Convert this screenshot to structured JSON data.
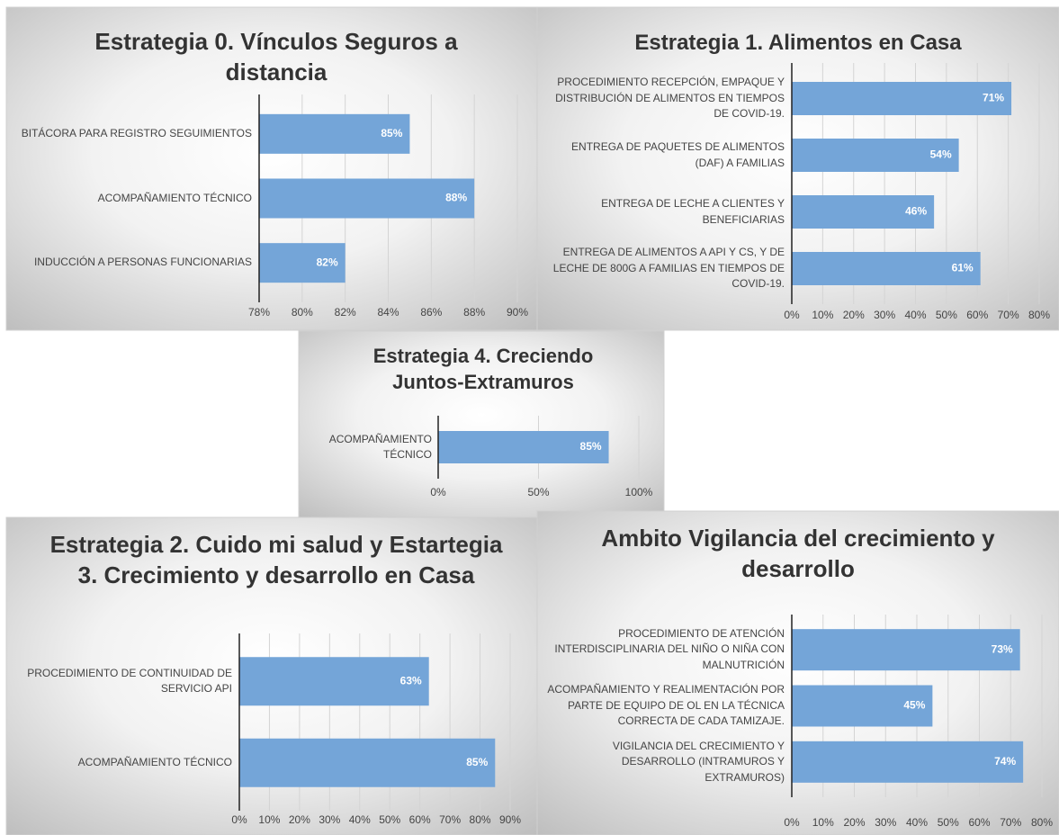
{
  "chart_data": [
    {
      "type": "bar",
      "orientation": "horizontal",
      "title": "Estrategia 0. Vínculos Seguros a distancia",
      "categories": [
        "BITÁCORA PARA REGISTRO SEGUIMIENTOS",
        "ACOMPAÑAMIENTO TÉCNICO",
        "INDUCCIÓN A PERSONAS FUNCIONARIAS"
      ],
      "values": [
        85,
        88,
        82
      ],
      "value_labels": [
        "85%",
        "88%",
        "82%"
      ],
      "color": "#74a5d8",
      "xlim": [
        78,
        90
      ],
      "xticks": [
        {
          "value": 78,
          "label": "78%"
        },
        {
          "value": 80,
          "label": "80%"
        },
        {
          "value": 82,
          "label": "82%"
        },
        {
          "value": 84,
          "label": "84%"
        },
        {
          "value": 86,
          "label": "86%"
        },
        {
          "value": 88,
          "label": "88%"
        },
        {
          "value": 90,
          "label": "90%"
        }
      ],
      "grid": true
    },
    {
      "type": "bar",
      "orientation": "horizontal",
      "title": "Estrategia 1. Alimentos en Casa",
      "categories": [
        "PROCEDIMIENTO RECEPCIÓN, EMPAQUE Y DISTRIBUCIÓN DE ALIMENTOS EN TIEMPOS DE COVID-19.",
        "ENTREGA DE PAQUETES DE ALIMENTOS (DAF) A FAMILIAS",
        "ENTREGA DE LECHE A CLIENTES Y BENEFICIARIAS",
        "ENTREGA DE ALIMENTOS A API Y CS, Y DE LECHE DE 800G A FAMILIAS EN TIEMPOS DE COVID-19."
      ],
      "values": [
        71,
        54,
        46,
        61
      ],
      "value_labels": [
        "71%",
        "54%",
        "46%",
        "61%"
      ],
      "color": "#74a5d8",
      "xlim": [
        0,
        80
      ],
      "xticks": [
        {
          "value": 0,
          "label": "0%"
        },
        {
          "value": 10,
          "label": "10%"
        },
        {
          "value": 20,
          "label": "20%"
        },
        {
          "value": 30,
          "label": "30%"
        },
        {
          "value": 40,
          "label": "40%"
        },
        {
          "value": 50,
          "label": "50%"
        },
        {
          "value": 60,
          "label": "60%"
        },
        {
          "value": 70,
          "label": "70%"
        },
        {
          "value": 80,
          "label": "80%"
        }
      ],
      "grid": true
    },
    {
      "type": "bar",
      "orientation": "horizontal",
      "title": "Estrategia 4. Creciendo Juntos-Extramuros",
      "categories": [
        "ACOMPAÑAMIENTO TÉCNICO"
      ],
      "values": [
        85
      ],
      "value_labels": [
        "85%"
      ],
      "color": "#74a5d8",
      "xlim": [
        0,
        100
      ],
      "xticks": [
        {
          "value": 0,
          "label": "0%"
        },
        {
          "value": 50,
          "label": "50%"
        },
        {
          "value": 100,
          "label": "100%"
        }
      ],
      "grid": true
    },
    {
      "type": "bar",
      "orientation": "horizontal",
      "title": "Estrategia 2. Cuido mi salud y Estartegia 3.  Crecimiento y desarrollo en Casa",
      "categories": [
        "PROCEDIMIENTO DE CONTINUIDAD DE SERVICIO API",
        "ACOMPAÑAMIENTO TÉCNICO"
      ],
      "values": [
        63,
        85
      ],
      "value_labels": [
        "63%",
        "85%"
      ],
      "color": "#74a5d8",
      "xlim": [
        0,
        90
      ],
      "xticks": [
        {
          "value": 0,
          "label": "0%"
        },
        {
          "value": 10,
          "label": "10%"
        },
        {
          "value": 20,
          "label": "20%"
        },
        {
          "value": 30,
          "label": "30%"
        },
        {
          "value": 40,
          "label": "40%"
        },
        {
          "value": 50,
          "label": "50%"
        },
        {
          "value": 60,
          "label": "60%"
        },
        {
          "value": 70,
          "label": "70%"
        },
        {
          "value": 80,
          "label": "80%"
        },
        {
          "value": 90,
          "label": "90%"
        }
      ],
      "grid": true
    },
    {
      "type": "bar",
      "orientation": "horizontal",
      "title": "Ambito Vigilancia del crecimiento y desarrollo",
      "categories": [
        "PROCEDIMIENTO DE ATENCIÓN INTERDISCIPLINARIA DEL NIÑO O NIÑA CON MALNUTRICIÓN",
        "ACOMPAÑAMIENTO Y REALIMENTACIÓN POR PARTE DE EQUIPO DE OL EN LA TÉCNICA CORRECTA DE CADA TAMIZAJE.",
        "VIGILANCIA DEL CRECIMIENTO Y DESARROLLO (INTRAMUROS Y EXTRAMUROS)"
      ],
      "values": [
        73,
        45,
        74
      ],
      "value_labels": [
        "73%",
        "45%",
        "74%"
      ],
      "color": "#74a5d8",
      "xlim": [
        0,
        80
      ],
      "xticks": [
        {
          "value": 0,
          "label": "0%"
        },
        {
          "value": 10,
          "label": "10%"
        },
        {
          "value": 20,
          "label": "20%"
        },
        {
          "value": 30,
          "label": "30%"
        },
        {
          "value": 40,
          "label": "40%"
        },
        {
          "value": 50,
          "label": "50%"
        },
        {
          "value": 60,
          "label": "60%"
        },
        {
          "value": 70,
          "label": "70%"
        },
        {
          "value": 80,
          "label": "80%"
        }
      ],
      "grid": true
    }
  ]
}
